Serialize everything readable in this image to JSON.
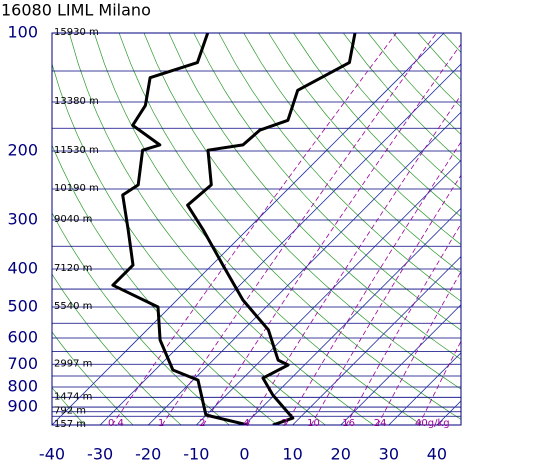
{
  "chart_data": {
    "type": "skew-t",
    "title": "16080 LIML Milano",
    "ylim": [
      1000,
      100
    ],
    "log_y": true,
    "yticks": [
      100,
      200,
      300,
      400,
      500,
      600,
      700,
      800,
      900
    ],
    "ygrid": [
      100,
      125,
      150,
      175,
      200,
      250,
      300,
      350,
      400,
      450,
      500,
      550,
      600,
      650,
      700,
      750,
      800,
      850,
      900,
      925,
      950,
      1000
    ],
    "xlim": [
      -40,
      45
    ],
    "xticks": [
      -40,
      -30,
      -20,
      -10,
      0,
      10,
      20,
      30,
      40
    ],
    "isotherm_color": "#1f2fa0",
    "isobar_color": "#00007f",
    "height_labels": [
      {
        "value": 100,
        "label": "15930 m"
      },
      {
        "value": 150,
        "label": "13380 m"
      },
      {
        "value": 200,
        "label": "11530 m"
      },
      {
        "value": 250,
        "label": "10190 m"
      },
      {
        "value": 300,
        "label": "9040 m"
      },
      {
        "value": 400,
        "label": "7120 m"
      },
      {
        "value": 500,
        "label": "5540 m"
      },
      {
        "value": 700,
        "label": "2997 m"
      },
      {
        "value": 850,
        "label": "1474 m"
      },
      {
        "value": 925,
        "label": "792 m"
      },
      {
        "value": 1000,
        "label": "157 m"
      }
    ],
    "mixing_ratio_color": "#9b009b",
    "mixing_ratios": [
      0.4,
      1,
      2,
      4,
      7,
      10,
      16,
      24,
      {
        "value": 40,
        "label": "40g/kg"
      }
    ],
    "series": [
      {
        "color": "#000000",
        "pressure": [
          100,
          119,
          140,
          167,
          177,
          193,
          199,
          244,
          275,
          318,
          391,
          480,
          572,
          683,
          703,
          759,
          839,
          960,
          1000
        ],
        "values": [
          -58.5,
          -53.5,
          -58.5,
          -54.3,
          -58.1,
          -58.5,
          -64.7,
          -56.8,
          -57.5,
          -49.1,
          -37.7,
          -26.3,
          -14.8,
          -6.5,
          -3.4,
          -5.9,
          -0.3,
          8.6,
          5.9
        ]
      },
      {
        "color": "#000000",
        "pressure": [
          100,
          119,
          130,
          153,
          172,
          193,
          199,
          244,
          259,
          318,
          391,
          440,
          500,
          607,
          724,
          768,
          943,
          1000
        ],
        "values": [
          -89.1,
          -85.1,
          -91.8,
          -87,
          -85.5,
          -75.8,
          -78.3,
          -72,
          -73.1,
          -64.7,
          -56.4,
          -56.4,
          -42.5,
          -35.2,
          -26.3,
          -19,
          -10.1,
          0.7
        ]
      }
    ]
  }
}
